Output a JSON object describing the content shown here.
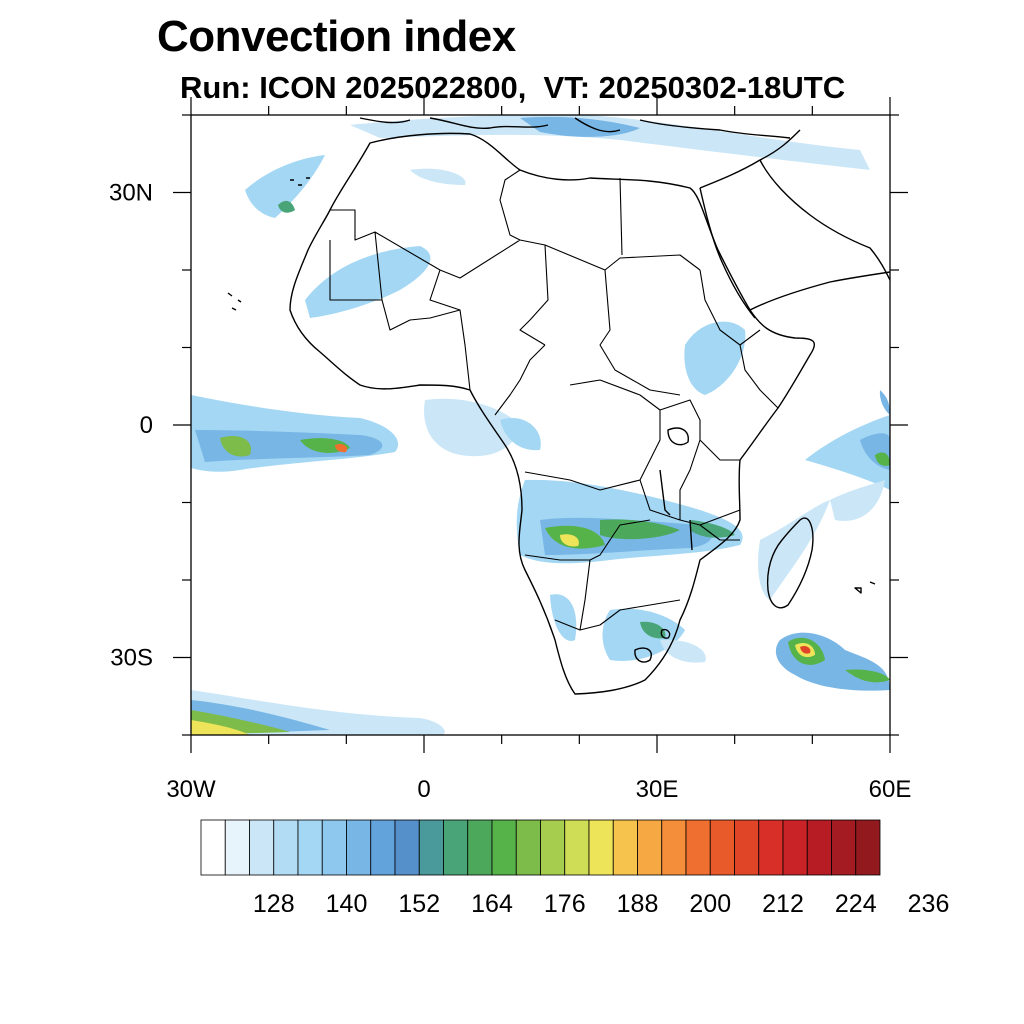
{
  "title": "Convection index",
  "subtitle": "Run: ICON 2025022800,  VT: 20250302-18UTC",
  "map": {
    "extent": {
      "lon": [
        -30,
        60
      ],
      "lat": [
        -40,
        40
      ]
    },
    "lat_labels": [
      {
        "lat": 30,
        "text": "30N"
      },
      {
        "lat": 0,
        "text": "0"
      },
      {
        "lat": -30,
        "text": "30S"
      }
    ],
    "lon_labels": [
      {
        "lon": -30,
        "text": "30W"
      },
      {
        "lon": 0,
        "text": "0"
      },
      {
        "lon": 30,
        "text": "30E"
      },
      {
        "lon": 60,
        "text": "60E"
      }
    ]
  },
  "colorbar": {
    "colors": [
      "#ffffff",
      "#e8f4fb",
      "#cbe7f7",
      "#b2dcf4",
      "#a3d7f4",
      "#8ec8ee",
      "#78b6e6",
      "#62a3dc",
      "#5590cb",
      "#4a9a9c",
      "#49a477",
      "#4ca95c",
      "#55b349",
      "#7dbb4a",
      "#a7cd4e",
      "#cfdc55",
      "#eee45a",
      "#f6c34c",
      "#f6a842",
      "#f48e3a",
      "#ef6f30",
      "#e85a2a",
      "#e04528",
      "#d82f28",
      "#c92327",
      "#b71c25",
      "#a51b22",
      "#921a1f"
    ],
    "label_values": [
      "128",
      "140",
      "152",
      "164",
      "176",
      "188",
      "200",
      "212",
      "224",
      "236"
    ]
  }
}
